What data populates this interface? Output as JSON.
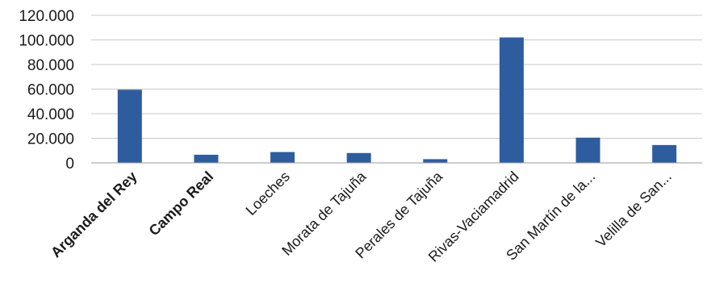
{
  "chart_data": {
    "type": "bar",
    "categories": [
      "Arganda del Rey",
      "Campo Real",
      "Loeches",
      "Morata de Tajuña",
      "Perales de Tajuña",
      "Rivas-Vaciamadrid",
      "San Martín de la...",
      "Velilla de San..."
    ],
    "bold_categories": [
      "Arganda del Rey",
      "Campo Real"
    ],
    "values": [
      59500,
      6600,
      8800,
      8000,
      3000,
      102000,
      20500,
      14500
    ],
    "yticks": [
      0,
      20000,
      40000,
      60000,
      80000,
      100000,
      120000
    ],
    "ytick_labels": [
      "0",
      "20.000",
      "40.000",
      "60.000",
      "80.000",
      "100.000",
      "120.000"
    ],
    "ylim": [
      0,
      120000
    ],
    "title": "",
    "xlabel": "",
    "ylabel": "",
    "grid": true,
    "legend": "none",
    "bar_color": "#2e5d9f"
  }
}
